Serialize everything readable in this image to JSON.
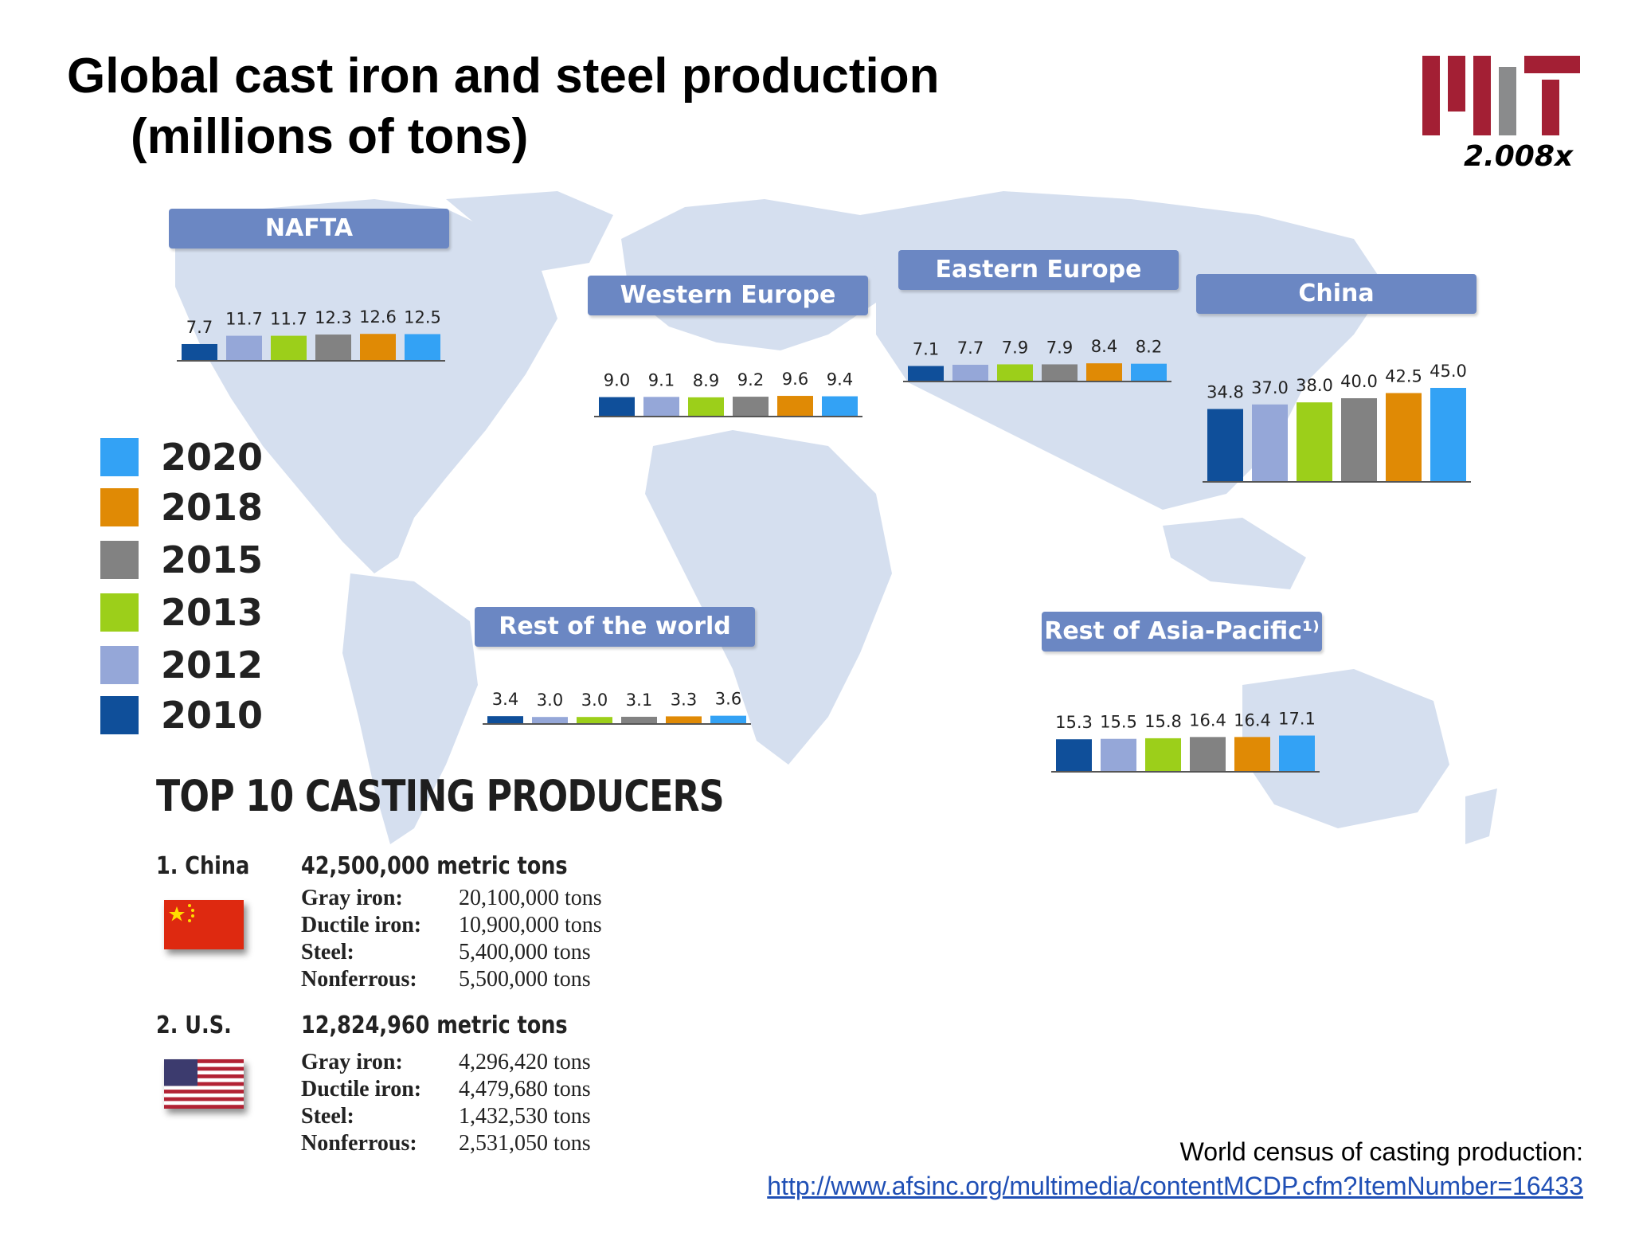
{
  "slide": {
    "title_line1": "Global cast iron and steel production",
    "title_line2": "(millions of tons)",
    "logo_text": "2.008x"
  },
  "colors": {
    "2010": "#0f4f9a",
    "2012": "#95a7d8",
    "2013": "#9ccf1a",
    "2015": "#828282",
    "2018": "#e08a05",
    "2020": "#33a2f5",
    "label_bg": "#6b87c3",
    "map": "#d5dfef"
  },
  "legend": {
    "items": [
      {
        "year": "2020",
        "color": "#33a2f5"
      },
      {
        "year": "2018",
        "color": "#e08a05"
      },
      {
        "year": "2015",
        "color": "#828282"
      },
      {
        "year": "2013",
        "color": "#9ccf1a"
      },
      {
        "year": "2012",
        "color": "#95a7d8"
      },
      {
        "year": "2010",
        "color": "#0f4f9a"
      }
    ]
  },
  "chart_data": [
    {
      "type": "bar",
      "title": "NAFTA",
      "categories": [
        "2010",
        "2012",
        "2013",
        "2015",
        "2018",
        "2020"
      ],
      "values": [
        7.7,
        11.7,
        11.7,
        12.3,
        12.6,
        12.5
      ],
      "labels": [
        "7.7",
        "11.7",
        "11.7",
        "12.3",
        "12.6",
        "12.5"
      ],
      "ylabel": "millions of tons"
    },
    {
      "type": "bar",
      "title": "Western Europe",
      "categories": [
        "2010",
        "2012",
        "2013",
        "2015",
        "2018",
        "2020"
      ],
      "values": [
        9.0,
        9.1,
        8.9,
        9.2,
        9.6,
        9.4
      ],
      "labels": [
        "9.0",
        "9.1",
        "8.9",
        "9.2",
        "9.6",
        "9.4"
      ],
      "ylabel": "millions of tons"
    },
    {
      "type": "bar",
      "title": "Eastern Europe",
      "categories": [
        "2010",
        "2012",
        "2013",
        "2015",
        "2018",
        "2020"
      ],
      "values": [
        7.1,
        7.7,
        7.9,
        7.9,
        8.4,
        8.2
      ],
      "labels": [
        "7.1",
        "7.7",
        "7.9",
        "7.9",
        "8.4",
        "8.2"
      ],
      "ylabel": "millions of tons"
    },
    {
      "type": "bar",
      "title": "China",
      "categories": [
        "2010",
        "2012",
        "2013",
        "2015",
        "2018",
        "2020"
      ],
      "values": [
        34.8,
        37.0,
        38.0,
        40.0,
        42.5,
        45.0
      ],
      "labels": [
        "34.8",
        "37.0",
        "38.0",
        "40.0",
        "42.5",
        "45.0"
      ],
      "ylabel": "millions of tons"
    },
    {
      "type": "bar",
      "title": "Rest of the world",
      "categories": [
        "2010",
        "2012",
        "2013",
        "2015",
        "2018",
        "2020"
      ],
      "values": [
        3.4,
        3.0,
        3.0,
        3.1,
        3.3,
        3.6
      ],
      "labels": [
        "3.4",
        "3.0",
        "3.0",
        "3.1",
        "3.3",
        "3.6"
      ],
      "ylabel": "millions of tons"
    },
    {
      "type": "bar",
      "title": "Rest of Asia-Pacific¹⁾",
      "categories": [
        "2010",
        "2012",
        "2013",
        "2015",
        "2018",
        "2020"
      ],
      "values": [
        15.3,
        15.5,
        15.8,
        16.4,
        16.4,
        17.1
      ],
      "labels": [
        "15.3",
        "15.5",
        "15.8",
        "16.4",
        "16.4",
        "17.1"
      ],
      "ylabel": "millions of tons"
    }
  ],
  "top10": {
    "heading": "TOP 10 CASTING PRODUCERS",
    "producers": [
      {
        "rank": "1. China",
        "total": "42,500,000 metric tons",
        "rows": [
          {
            "k": "Gray iron:",
            "v": "20,100,000 tons"
          },
          {
            "k": "Ductile iron:",
            "v": "10,900,000 tons"
          },
          {
            "k": "Steel:",
            "v": "5,400,000 tons"
          },
          {
            "k": "Nonferrous:",
            "v": "5,500,000 tons"
          }
        ]
      },
      {
        "rank": "2. U.S.",
        "total": "12,824,960 metric tons",
        "rows": [
          {
            "k": "Gray iron:",
            "v": "4,296,420 tons"
          },
          {
            "k": "Ductile iron:",
            "v": "4,479,680 tons"
          },
          {
            "k": "Steel:",
            "v": "1,432,530 tons"
          },
          {
            "k": "Nonferrous:",
            "v": "2,531,050 tons"
          }
        ]
      }
    ]
  },
  "source": {
    "text": "World census of casting production:",
    "link": "http://www.afsinc.org/multimedia/contentMCDP.cfm?ItemNumber=16433"
  }
}
